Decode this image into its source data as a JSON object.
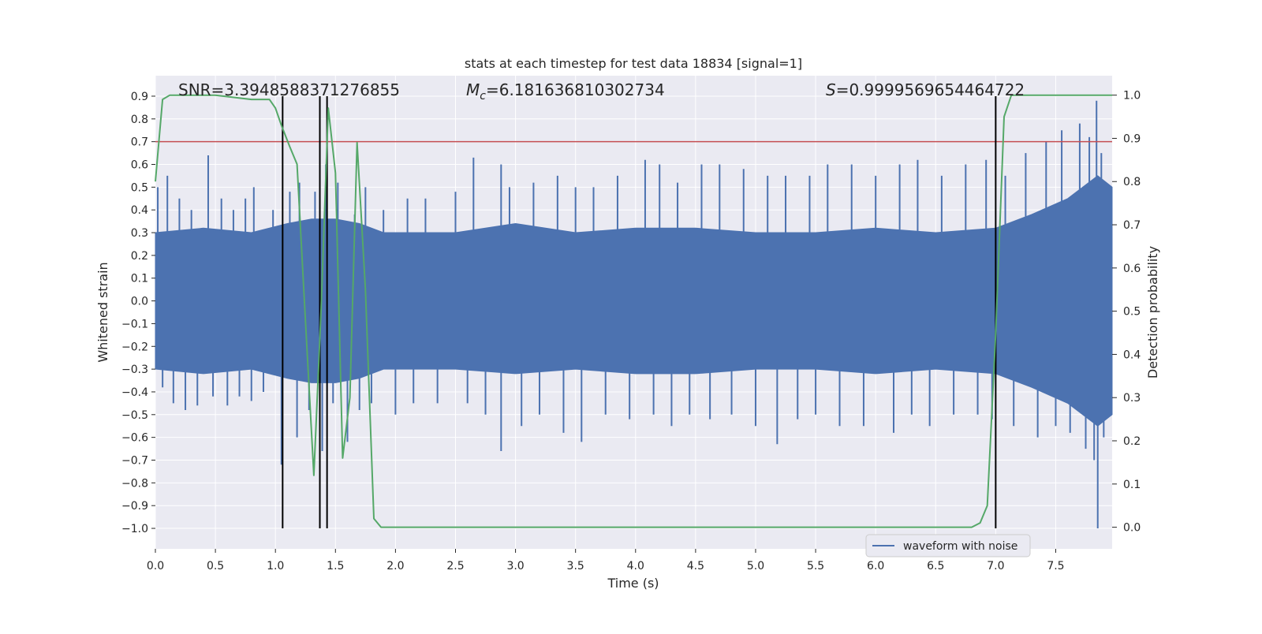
{
  "chart_data": {
    "type": "line",
    "title": "stats at each timestep for test data 18834 [signal=1]",
    "xlabel": "Time (s)",
    "ylabel": "Whitened strain",
    "y2label": "Detection probability",
    "xlim": [
      0.0,
      7.97
    ],
    "ylim": [
      -1.09,
      0.99
    ],
    "y2lim": [
      -0.05,
      1.045
    ],
    "x_ticks": [
      "0.0",
      "0.5",
      "1.0",
      "1.5",
      "2.0",
      "2.5",
      "3.0",
      "3.5",
      "4.0",
      "4.5",
      "5.0",
      "5.5",
      "6.0",
      "6.5",
      "7.0",
      "7.5"
    ],
    "y_ticks": [
      "−1.0",
      "−0.9",
      "−0.8",
      "−0.7",
      "−0.6",
      "−0.5",
      "−0.4",
      "−0.3",
      "−0.2",
      "−0.1",
      "0.0",
      "0.1",
      "0.2",
      "0.3",
      "0.4",
      "0.5",
      "0.6",
      "0.7",
      "0.8",
      "0.9"
    ],
    "y2_ticks": [
      "0.0",
      "0.1",
      "0.2",
      "0.3",
      "0.4",
      "0.5",
      "0.6",
      "0.7",
      "0.8",
      "0.9",
      "1.0"
    ],
    "grid": true,
    "legend_location": "lower-right",
    "annotations": {
      "snr": "SNR=3.3948588371276855",
      "mc_symbol": "M",
      "mc_subscript": "c",
      "mc_value": "=6.181636810302734",
      "s_symbol": "S",
      "s_value": "=0.9999569654464722"
    },
    "series": [
      {
        "name": "waveform with noise",
        "color": "#4c72b0",
        "envelope": {
          "x": [
            0.0,
            0.4,
            0.8,
            1.1,
            1.3,
            1.5,
            1.7,
            1.9,
            2.5,
            3.0,
            3.5,
            4.0,
            4.5,
            5.0,
            5.5,
            6.0,
            6.5,
            7.0,
            7.3,
            7.6,
            7.85,
            7.97
          ],
          "upper": [
            0.3,
            0.32,
            0.3,
            0.34,
            0.36,
            0.36,
            0.34,
            0.3,
            0.3,
            0.34,
            0.3,
            0.32,
            0.32,
            0.3,
            0.3,
            0.32,
            0.3,
            0.32,
            0.38,
            0.45,
            0.55,
            0.5
          ],
          "lower": [
            -0.3,
            -0.32,
            -0.3,
            -0.34,
            -0.36,
            -0.36,
            -0.34,
            -0.3,
            -0.3,
            -0.32,
            -0.3,
            -0.32,
            -0.32,
            -0.3,
            -0.3,
            -0.32,
            -0.3,
            -0.32,
            -0.38,
            -0.45,
            -0.55,
            -0.5
          ]
        },
        "spikes": [
          [
            0.02,
            0.5
          ],
          [
            0.06,
            -0.38
          ],
          [
            0.1,
            0.55
          ],
          [
            0.15,
            -0.45
          ],
          [
            0.2,
            0.45
          ],
          [
            0.25,
            -0.48
          ],
          [
            0.3,
            0.4
          ],
          [
            0.35,
            -0.46
          ],
          [
            0.44,
            0.64
          ],
          [
            0.48,
            -0.42
          ],
          [
            0.55,
            0.45
          ],
          [
            0.6,
            -0.46
          ],
          [
            0.65,
            0.4
          ],
          [
            0.7,
            -0.42
          ],
          [
            0.75,
            0.45
          ],
          [
            0.8,
            -0.44
          ],
          [
            0.82,
            0.5
          ],
          [
            0.9,
            -0.4
          ],
          [
            0.98,
            0.4
          ],
          [
            1.05,
            -0.72
          ],
          [
            1.12,
            0.48
          ],
          [
            1.18,
            -0.6
          ],
          [
            1.2,
            0.52
          ],
          [
            1.28,
            -0.48
          ],
          [
            1.33,
            0.48
          ],
          [
            1.39,
            -0.66
          ],
          [
            1.42,
            0.6
          ],
          [
            1.48,
            -0.45
          ],
          [
            1.52,
            0.52
          ],
          [
            1.6,
            -0.62
          ],
          [
            1.66,
            0.38
          ],
          [
            1.7,
            -0.48
          ],
          [
            1.75,
            0.5
          ],
          [
            1.8,
            -0.45
          ],
          [
            1.9,
            0.4
          ],
          [
            2.0,
            -0.5
          ],
          [
            2.1,
            0.45
          ],
          [
            2.15,
            -0.45
          ],
          [
            2.25,
            0.45
          ],
          [
            2.35,
            -0.45
          ],
          [
            2.5,
            0.48
          ],
          [
            2.6,
            -0.45
          ],
          [
            2.65,
            0.63
          ],
          [
            2.75,
            -0.5
          ],
          [
            2.88,
            0.6
          ],
          [
            2.88,
            -0.66
          ],
          [
            2.95,
            0.5
          ],
          [
            3.05,
            -0.55
          ],
          [
            3.15,
            0.52
          ],
          [
            3.2,
            -0.5
          ],
          [
            3.35,
            0.55
          ],
          [
            3.4,
            -0.58
          ],
          [
            3.5,
            0.5
          ],
          [
            3.55,
            -0.62
          ],
          [
            3.65,
            0.5
          ],
          [
            3.75,
            -0.5
          ],
          [
            3.85,
            0.55
          ],
          [
            3.95,
            -0.52
          ],
          [
            4.08,
            0.62
          ],
          [
            4.15,
            -0.5
          ],
          [
            4.2,
            0.6
          ],
          [
            4.3,
            -0.55
          ],
          [
            4.35,
            0.52
          ],
          [
            4.45,
            -0.5
          ],
          [
            4.55,
            0.6
          ],
          [
            4.62,
            -0.52
          ],
          [
            4.7,
            0.6
          ],
          [
            4.8,
            -0.5
          ],
          [
            4.9,
            0.58
          ],
          [
            5.0,
            -0.55
          ],
          [
            5.1,
            0.55
          ],
          [
            5.18,
            -0.63
          ],
          [
            5.25,
            0.55
          ],
          [
            5.35,
            -0.52
          ],
          [
            5.45,
            0.55
          ],
          [
            5.5,
            -0.5
          ],
          [
            5.6,
            0.6
          ],
          [
            5.7,
            -0.55
          ],
          [
            5.8,
            0.6
          ],
          [
            5.9,
            -0.55
          ],
          [
            6.0,
            0.55
          ],
          [
            6.15,
            -0.58
          ],
          [
            6.2,
            0.6
          ],
          [
            6.3,
            -0.5
          ],
          [
            6.35,
            0.62
          ],
          [
            6.45,
            -0.55
          ],
          [
            6.55,
            0.55
          ],
          [
            6.65,
            -0.5
          ],
          [
            6.75,
            0.6
          ],
          [
            6.85,
            -0.5
          ],
          [
            6.92,
            0.62
          ],
          [
            6.97,
            -0.52
          ],
          [
            7.08,
            0.55
          ],
          [
            7.15,
            -0.55
          ],
          [
            7.25,
            0.65
          ],
          [
            7.35,
            -0.6
          ],
          [
            7.42,
            0.7
          ],
          [
            7.5,
            -0.55
          ],
          [
            7.55,
            0.75
          ],
          [
            7.62,
            -0.58
          ],
          [
            7.7,
            0.78
          ],
          [
            7.75,
            -0.65
          ],
          [
            7.78,
            0.72
          ],
          [
            7.82,
            -0.7
          ],
          [
            7.84,
            0.88
          ],
          [
            7.85,
            -1.0
          ],
          [
            7.88,
            0.65
          ],
          [
            7.9,
            -0.6
          ],
          [
            7.95,
            0.45
          ]
        ]
      },
      {
        "color": "#55a868",
        "axis": "right",
        "x": [
          0.0,
          0.06,
          0.12,
          0.2,
          0.5,
          0.8,
          0.95,
          1.0,
          1.05,
          1.12,
          1.18,
          1.25,
          1.32,
          1.38,
          1.44,
          1.5,
          1.56,
          1.62,
          1.68,
          1.75,
          1.82,
          1.88,
          2.0,
          2.5,
          3.0,
          3.5,
          4.0,
          4.5,
          5.0,
          5.5,
          6.0,
          6.5,
          6.8,
          6.87,
          6.93,
          7.0,
          7.07,
          7.13,
          7.5,
          7.97
        ],
        "values": [
          0.8,
          0.99,
          1.0,
          1.0,
          1.0,
          0.99,
          0.99,
          0.97,
          0.93,
          0.88,
          0.84,
          0.48,
          0.12,
          0.5,
          0.97,
          0.82,
          0.16,
          0.3,
          0.89,
          0.55,
          0.02,
          0.0,
          0.0,
          0.0,
          0.0,
          0.0,
          0.0,
          0.0,
          0.0,
          0.0,
          0.0,
          0.0,
          0.0,
          0.01,
          0.05,
          0.45,
          0.95,
          1.0,
          1.0,
          1.0
        ]
      }
    ],
    "hlines": [
      {
        "y": 0.7,
        "color": "#c44e52"
      }
    ],
    "vlines": [
      {
        "x": 1.06,
        "y_top": 0.9,
        "color": "#000000"
      },
      {
        "x": 1.37,
        "y_top": 0.9,
        "color": "#000000"
      },
      {
        "x": 1.43,
        "y_top": 0.9,
        "color": "#000000"
      },
      {
        "x": 7.0,
        "y_top": 0.9,
        "color": "#000000"
      }
    ],
    "colors": {
      "plot_bg": "#eaeaf2",
      "grid": "#ffffff"
    }
  }
}
